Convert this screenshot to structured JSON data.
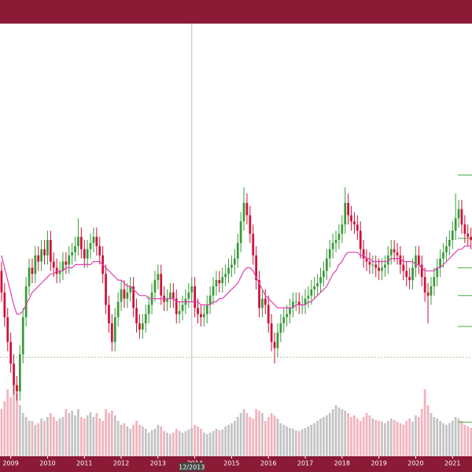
{
  "chart_data": {
    "type": "candlestick",
    "open": [
      45,
      38,
      30,
      22,
      15,
      8,
      6,
      18,
      30,
      40,
      46,
      44,
      50,
      48,
      52,
      50,
      55,
      48,
      46,
      44,
      45,
      48,
      47,
      50,
      51,
      53,
      56,
      52,
      49,
      52,
      54,
      56,
      53,
      50,
      44,
      34,
      28,
      22,
      30,
      35,
      39,
      36,
      38,
      40,
      33,
      28,
      26,
      28,
      31,
      34,
      38,
      42,
      44,
      37,
      35,
      36,
      38,
      36,
      31,
      32,
      34,
      36,
      38,
      40,
      33,
      31,
      30,
      31,
      34,
      37,
      40,
      42,
      41,
      43,
      44,
      46,
      47,
      49,
      54,
      61,
      67,
      63,
      57,
      50,
      42,
      33,
      36,
      34,
      28,
      22,
      20,
      25,
      28,
      30,
      31,
      33,
      35,
      35,
      34,
      34,
      36,
      37,
      39,
      40,
      41,
      43,
      45,
      49,
      52,
      54,
      55,
      57,
      60,
      67,
      63,
      61,
      60,
      58,
      52,
      49,
      48,
      47,
      47,
      46,
      45,
      46,
      47,
      50,
      52,
      51,
      50,
      47,
      45,
      43,
      42,
      46,
      50,
      47,
      43,
      38,
      37,
      40,
      43,
      46,
      49,
      51,
      53,
      55,
      58,
      62,
      65,
      60,
      57,
      56
    ],
    "high": [
      48,
      41,
      33,
      25,
      18,
      11,
      21,
      33,
      43,
      49,
      49,
      53,
      53,
      55,
      55,
      58,
      58,
      51,
      49,
      48,
      51,
      51,
      53,
      54,
      56,
      62,
      59,
      55,
      55,
      57,
      59,
      59,
      56,
      53,
      47,
      37,
      31,
      33,
      38,
      42,
      42,
      41,
      43,
      43,
      36,
      31,
      31,
      34,
      37,
      41,
      45,
      47,
      47,
      40,
      39,
      41,
      41,
      39,
      35,
      37,
      39,
      41,
      43,
      43,
      36,
      34,
      34,
      37,
      40,
      43,
      45,
      45,
      46,
      47,
      49,
      50,
      52,
      57,
      64,
      72,
      70,
      66,
      60,
      53,
      45,
      39,
      39,
      37,
      31,
      25,
      28,
      31,
      33,
      34,
      36,
      38,
      38,
      38,
      37,
      39,
      40,
      42,
      43,
      44,
      46,
      48,
      52,
      55,
      57,
      58,
      60,
      63,
      72,
      70,
      66,
      64,
      63,
      61,
      55,
      52,
      51,
      50,
      50,
      49,
      49,
      50,
      53,
      55,
      55,
      54,
      53,
      50,
      48,
      46,
      49,
      53,
      53,
      50,
      46,
      41,
      43,
      46,
      49,
      52,
      54,
      56,
      58,
      61,
      70,
      68,
      68,
      63,
      60,
      59
    ],
    "low": [
      35,
      27,
      19,
      12,
      5,
      3,
      3,
      15,
      27,
      37,
      41,
      41,
      45,
      45,
      47,
      47,
      45,
      43,
      41,
      41,
      42,
      44,
      44,
      47,
      48,
      50,
      49,
      46,
      46,
      49,
      51,
      50,
      47,
      41,
      31,
      25,
      19,
      19,
      27,
      32,
      33,
      33,
      35,
      30,
      25,
      23,
      23,
      25,
      28,
      31,
      35,
      39,
      34,
      32,
      32,
      33,
      33,
      28,
      28,
      29,
      31,
      33,
      35,
      30,
      28,
      27,
      27,
      28,
      31,
      34,
      37,
      38,
      38,
      40,
      41,
      43,
      44,
      46,
      51,
      58,
      60,
      54,
      47,
      39,
      30,
      30,
      31,
      25,
      19,
      15,
      17,
      22,
      25,
      27,
      28,
      30,
      32,
      31,
      31,
      31,
      33,
      34,
      36,
      37,
      38,
      40,
      42,
      46,
      49,
      51,
      52,
      54,
      57,
      60,
      58,
      57,
      55,
      49,
      46,
      45,
      44,
      44,
      43,
      42,
      42,
      43,
      44,
      47,
      48,
      47,
      44,
      42,
      40,
      39,
      39,
      43,
      44,
      40,
      35,
      28,
      34,
      37,
      40,
      43,
      46,
      48,
      50,
      52,
      55,
      59,
      57,
      54,
      53,
      52
    ],
    "close": [
      38,
      30,
      22,
      15,
      8,
      6,
      18,
      30,
      40,
      46,
      44,
      50,
      48,
      52,
      50,
      55,
      48,
      46,
      44,
      45,
      48,
      47,
      50,
      51,
      53,
      56,
      52,
      49,
      52,
      54,
      56,
      53,
      50,
      44,
      34,
      28,
      22,
      30,
      35,
      39,
      36,
      38,
      40,
      33,
      28,
      26,
      28,
      31,
      34,
      38,
      42,
      44,
      37,
      35,
      36,
      38,
      36,
      31,
      32,
      34,
      36,
      38,
      40,
      33,
      31,
      30,
      31,
      34,
      37,
      40,
      42,
      41,
      43,
      44,
      46,
      47,
      49,
      54,
      61,
      67,
      63,
      57,
      50,
      42,
      33,
      36,
      34,
      28,
      22,
      20,
      25,
      28,
      30,
      31,
      33,
      35,
      35,
      34,
      34,
      36,
      37,
      39,
      40,
      41,
      43,
      45,
      49,
      52,
      54,
      55,
      57,
      60,
      67,
      63,
      61,
      60,
      58,
      52,
      49,
      48,
      47,
      47,
      46,
      45,
      46,
      47,
      50,
      52,
      51,
      50,
      47,
      45,
      43,
      42,
      46,
      50,
      47,
      43,
      38,
      37,
      40,
      43,
      46,
      49,
      51,
      53,
      55,
      58,
      62,
      65,
      60,
      57,
      56,
      55
    ],
    "volume": [
      60,
      70,
      85,
      75,
      90,
      80,
      65,
      55,
      50,
      45,
      45,
      40,
      42,
      48,
      45,
      50,
      55,
      50,
      45,
      48,
      50,
      60,
      55,
      58,
      52,
      60,
      50,
      48,
      52,
      56,
      50,
      55,
      48,
      45,
      60,
      55,
      58,
      52,
      45,
      40,
      42,
      38,
      35,
      40,
      45,
      40,
      38,
      35,
      30,
      33,
      35,
      40,
      38,
      32,
      30,
      28,
      30,
      35,
      32,
      30,
      32,
      34,
      36,
      40,
      38,
      35,
      30,
      28,
      30,
      32,
      35,
      33,
      34,
      38,
      40,
      42,
      45,
      50,
      55,
      60,
      55,
      50,
      48,
      60,
      58,
      55,
      45,
      50,
      55,
      52,
      48,
      42,
      40,
      38,
      36,
      35,
      33,
      32,
      34,
      36,
      38,
      40,
      42,
      45,
      48,
      50,
      52,
      55,
      60,
      65,
      62,
      60,
      58,
      55,
      50,
      52,
      48,
      45,
      50,
      55,
      52,
      48,
      46,
      45,
      44,
      42,
      45,
      48,
      46,
      44,
      42,
      40,
      45,
      48,
      44,
      52,
      50,
      60,
      85,
      65,
      55,
      50,
      48,
      45,
      42,
      40,
      42,
      45,
      50,
      48,
      45,
      40,
      38,
      36
    ],
    "ma": [
      50,
      46,
      42,
      38,
      34,
      31,
      31,
      32,
      34,
      36,
      38,
      39,
      40,
      41,
      42,
      43,
      44,
      44,
      45,
      45,
      45,
      46,
      46,
      46,
      47,
      47,
      47,
      47,
      47,
      47,
      48,
      48,
      48,
      47,
      46,
      45,
      44,
      43,
      42,
      42,
      41,
      40,
      40,
      39,
      38,
      37,
      37,
      37,
      36,
      36,
      36,
      36,
      36,
      36,
      36,
      36,
      36,
      35,
      35,
      35,
      35,
      35,
      35,
      35,
      35,
      34,
      34,
      34,
      34,
      35,
      35,
      36,
      36,
      37,
      38,
      39,
      40,
      41,
      43,
      45,
      46,
      46,
      45,
      43,
      41,
      39,
      37,
      36,
      35,
      34,
      33,
      33,
      33,
      33,
      33,
      33,
      34,
      34,
      34,
      34,
      35,
      35,
      36,
      37,
      38,
      39,
      40,
      42,
      44,
      45,
      47,
      48,
      50,
      51,
      51,
      51,
      51,
      50,
      50,
      49,
      49,
      48,
      48,
      48,
      48,
      48,
      48,
      49,
      49,
      49,
      49,
      48,
      48,
      48,
      48,
      47,
      47,
      46,
      45,
      45,
      45,
      45,
      46,
      46,
      47,
      48,
      49,
      50,
      51,
      52,
      52,
      53,
      53,
      53
    ],
    "up_color": "#3a9a3a",
    "down_color": "#d0103a",
    "ma_color": "#e040b0",
    "volume_up_color": "#c4c4c4",
    "volume_down_color": "#f2b3bd",
    "level_color": "#4aa84a",
    "xlim": [
      -0.5,
      153.35
    ],
    "ylim": [
      -15,
      125
    ],
    "vlim": [
      0,
      100
    ],
    "xticks": [
      {
        "value": 3,
        "label": "2009"
      },
      {
        "value": 15,
        "label": "2010"
      },
      {
        "value": 27,
        "label": "2011"
      },
      {
        "value": 39,
        "label": "2012"
      },
      {
        "value": 51,
        "label": "2013"
      },
      {
        "value": 63,
        "label": "2014"
      },
      {
        "value": 75,
        "label": "2015"
      },
      {
        "value": 87,
        "label": "2016"
      },
      {
        "value": 99,
        "label": "2017"
      },
      {
        "value": 111,
        "label": "2018"
      },
      {
        "value": 123,
        "label": "2019"
      },
      {
        "value": 135,
        "label": "2020"
      },
      {
        "value": 147,
        "label": "2021"
      }
    ],
    "levels": [
      76,
      55.5,
      46,
      37,
      27,
      -4
    ],
    "crosshair": {
      "x": 62,
      "y": 17,
      "label": "12/2013"
    }
  }
}
